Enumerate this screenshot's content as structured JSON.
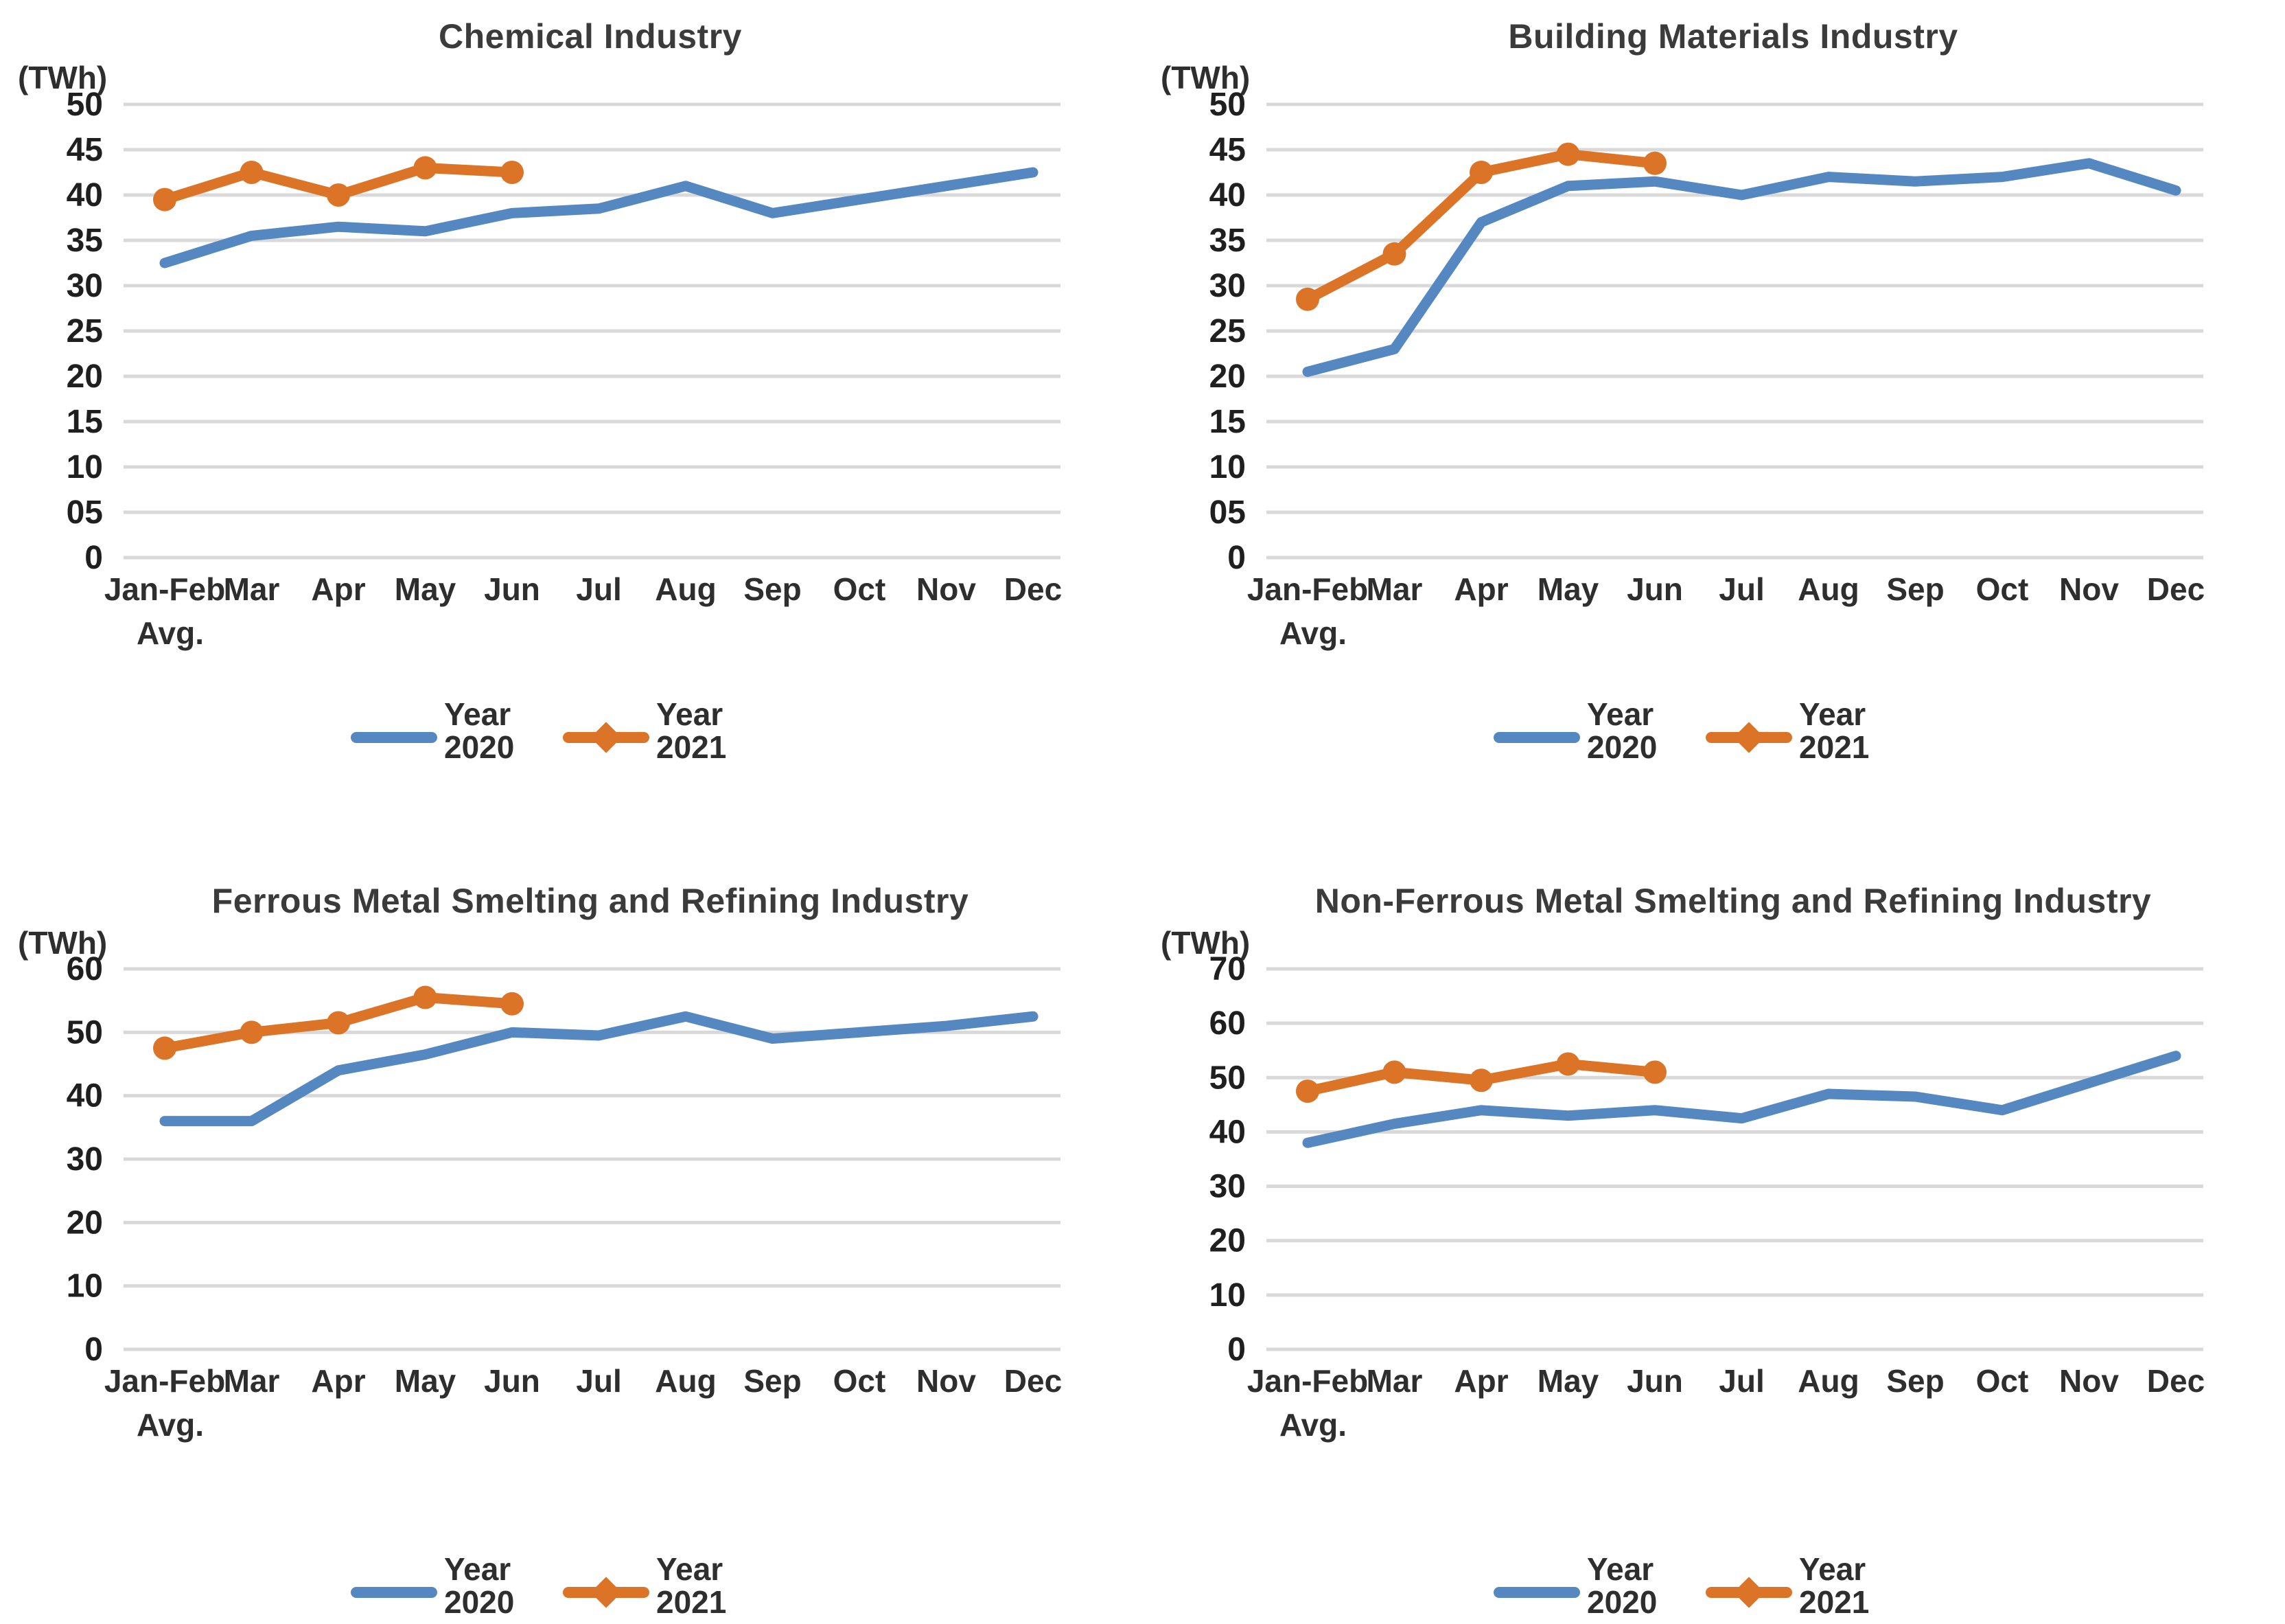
{
  "page": {
    "background": "#ffffff",
    "description_visible_text_only": "Four line charts comparing monthly electricity consumption (TWh) of four industries for Year 2020 and Year 2021"
  },
  "colors": {
    "series_2020": "#5588C0",
    "series_2021": "#DC7428",
    "gridline": "#D9D9D9",
    "title_text": "#3B3B3B",
    "tick_text": "#1F1F1F",
    "axis_label_text": "#2E2E2E",
    "legend_text": "#2E2E2E"
  },
  "chart_data": [
    {
      "type": "line",
      "title": "Chemical Industry",
      "unit_label": "(TWh)",
      "grid": true,
      "legend_position": "bottom",
      "ylim": [
        0,
        50
      ],
      "y_tick_values": [
        50,
        45,
        40,
        35,
        30,
        25,
        20,
        15,
        10,
        5,
        0
      ],
      "y_tick_labels": [
        "50",
        "45",
        "40",
        "35",
        "30",
        "25",
        "20",
        "15",
        "10",
        "05",
        "0"
      ],
      "x_labels": [
        "Jan-Feb",
        "Mar",
        "Apr",
        "May",
        "Jun",
        "Jul",
        "Aug",
        "Sep",
        "Oct",
        "Nov",
        "Dec"
      ],
      "x_first_label_second_line": "Avg.",
      "series": [
        {
          "name": "Year 2020",
          "legend_lines": [
            "Year",
            "2020"
          ],
          "color_key": "series_2020",
          "marker": "none",
          "values": [
            32.5,
            35.5,
            36.5,
            36,
            38,
            38.5,
            41,
            38,
            39.5,
            41,
            42.5
          ]
        },
        {
          "name": "Year 2021",
          "legend_lines": [
            "Year",
            "2021"
          ],
          "color_key": "series_2021",
          "marker": "circle",
          "values": [
            39.5,
            42.5,
            40,
            43,
            42.5
          ]
        }
      ]
    },
    {
      "type": "line",
      "title": "Building Materials Industry",
      "unit_label": "(TWh)",
      "grid": true,
      "legend_position": "bottom",
      "ylim": [
        0,
        50
      ],
      "y_tick_values": [
        50,
        45,
        40,
        35,
        30,
        25,
        20,
        15,
        10,
        5,
        0
      ],
      "y_tick_labels": [
        "50",
        "45",
        "40",
        "35",
        "30",
        "25",
        "20",
        "15",
        "10",
        "05",
        "0"
      ],
      "x_labels": [
        "Jan-Feb",
        "Mar",
        "Apr",
        "May",
        "Jun",
        "Jul",
        "Aug",
        "Sep",
        "Oct",
        "Nov",
        "Dec"
      ],
      "x_first_label_second_line": "Avg.",
      "series": [
        {
          "name": "Year 2020",
          "legend_lines": [
            "Year",
            "2020"
          ],
          "color_key": "series_2020",
          "marker": "none",
          "values": [
            20.5,
            23,
            37,
            41,
            41.5,
            40,
            42,
            41.5,
            42,
            43.5,
            40.5
          ]
        },
        {
          "name": "Year 2021",
          "legend_lines": [
            "Year",
            "2021"
          ],
          "color_key": "series_2021",
          "marker": "circle",
          "values": [
            28.5,
            33.5,
            42.5,
            44.5,
            43.5
          ]
        }
      ]
    },
    {
      "type": "line",
      "title": "Ferrous Metal Smelting and Refining Industry",
      "unit_label": "(TWh)",
      "grid": true,
      "legend_position": "bottom",
      "ylim": [
        0,
        60
      ],
      "y_tick_values": [
        60,
        50,
        40,
        30,
        20,
        10,
        0
      ],
      "y_tick_labels": [
        "60",
        "50",
        "40",
        "30",
        "20",
        "10",
        "0"
      ],
      "x_labels": [
        "Jan-Feb",
        "Mar",
        "Apr",
        "May",
        "Jun",
        "Jul",
        "Aug",
        "Sep",
        "Oct",
        "Nov",
        "Dec"
      ],
      "x_first_label_second_line": "Avg.",
      "series": [
        {
          "name": "Year 2020",
          "legend_lines": [
            "Year",
            "2020"
          ],
          "color_key": "series_2020",
          "marker": "none",
          "values": [
            36,
            36,
            44,
            46.5,
            50,
            49.5,
            52.5,
            49,
            50,
            51,
            52.5
          ]
        },
        {
          "name": "Year 2021",
          "legend_lines": [
            "Year",
            "2021"
          ],
          "color_key": "series_2021",
          "marker": "circle",
          "values": [
            47.5,
            50,
            51.5,
            55.5,
            54.5
          ]
        }
      ]
    },
    {
      "type": "line",
      "title": "Non-Ferrous Metal Smelting and Refining Industry",
      "unit_label": "(TWh)",
      "grid": true,
      "legend_position": "bottom",
      "ylim": [
        0,
        70
      ],
      "y_tick_values": [
        70,
        60,
        50,
        40,
        30,
        20,
        10,
        0
      ],
      "y_tick_labels": [
        "70",
        "60",
        "50",
        "40",
        "30",
        "20",
        "10",
        "0"
      ],
      "x_labels": [
        "Jan-Feb",
        "Mar",
        "Apr",
        "May",
        "Jun",
        "Jul",
        "Aug",
        "Sep",
        "Oct",
        "Nov",
        "Dec"
      ],
      "x_first_label_second_line": "Avg.",
      "series": [
        {
          "name": "Year 2020",
          "legend_lines": [
            "Year",
            "2020"
          ],
          "color_key": "series_2020",
          "marker": "none",
          "values": [
            38,
            41.5,
            44,
            43,
            44,
            42.5,
            47,
            46.5,
            44,
            49,
            54
          ]
        },
        {
          "name": "Year 2021",
          "legend_lines": [
            "Year",
            "2021"
          ],
          "color_key": "series_2021",
          "marker": "circle",
          "values": [
            47.5,
            51,
            49.5,
            52.5,
            51
          ]
        }
      ]
    }
  ]
}
